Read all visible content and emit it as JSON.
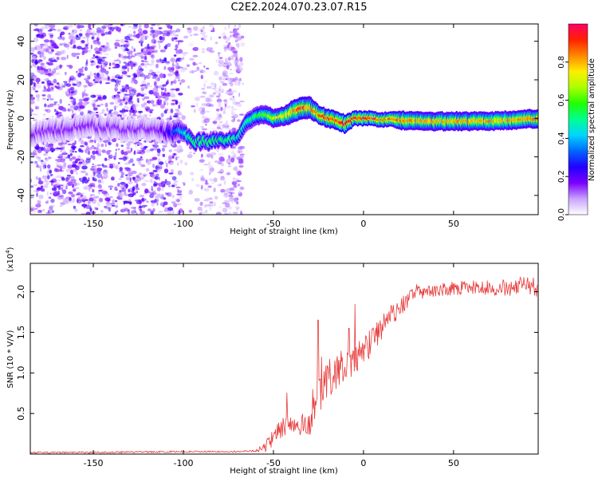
{
  "page_title": "C2E2.2024.070.23.07.R15",
  "colors": {
    "snr_line": "#e83a3a",
    "axis": "#000000",
    "colormap": [
      "#ffffff",
      "#c8a2ff",
      "#7b00ff",
      "#2200ff",
      "#0066ff",
      "#00d5ff",
      "#00ff90",
      "#22ff00",
      "#aaff00",
      "#ffee00",
      "#ff8800",
      "#ff2200",
      "#ff0066"
    ]
  },
  "chart_data": [
    {
      "type": "heatmap",
      "name": "spectrogram",
      "title": "",
      "xlabel": "Height of straight line (km)",
      "ylabel": "Frequency (Hz)",
      "xlim": [
        -185,
        97
      ],
      "ylim": [
        -50,
        49
      ],
      "xticks": [
        -150,
        -100,
        -50,
        0,
        50
      ],
      "yticks": [
        -40,
        -20,
        0,
        20,
        40
      ],
      "grid": false,
      "colorbar": {
        "label": "Normalized spectral amplitude",
        "range": [
          0,
          1
        ],
        "ticks": [
          0.0,
          0.2,
          0.4,
          0.6,
          0.8
        ]
      },
      "ridge": {
        "description_points_x": [
          -185,
          -170,
          -150,
          -130,
          -115,
          -105,
          -100,
          -95,
          -85,
          -75,
          -70,
          -65,
          -60,
          -55,
          -50,
          -45,
          -40,
          -35,
          -30,
          -25,
          -20,
          -15,
          -10,
          -5,
          0,
          5,
          10,
          15,
          20,
          30,
          40,
          50,
          60,
          70,
          80,
          97
        ],
        "description_points_y": [
          -8,
          -6,
          -4,
          -6,
          -5,
          -8,
          -6,
          -12,
          -12,
          -11,
          -10,
          -2,
          1,
          2,
          0,
          1,
          3,
          5,
          6,
          2,
          0,
          -1,
          -3,
          0,
          0,
          0,
          -1,
          0,
          -1,
          -1.5,
          -1.5,
          -1.5,
          -1.5,
          -1.5,
          -1,
          0
        ],
        "width_hz": [
          6,
          6,
          6,
          6,
          6,
          6,
          5,
          4,
          4,
          4,
          4,
          5,
          5,
          5,
          5,
          5,
          6,
          6,
          6,
          5,
          5,
          5,
          5,
          4,
          4,
          4,
          4,
          4,
          5,
          5,
          5,
          5,
          5,
          5,
          5,
          5
        ],
        "peak_amplitude": [
          0.15,
          0.15,
          0.15,
          0.15,
          0.15,
          0.3,
          0.45,
          0.55,
          0.55,
          0.55,
          0.5,
          0.5,
          0.55,
          0.6,
          0.7,
          0.75,
          0.8,
          0.9,
          0.8,
          0.85,
          0.9,
          0.9,
          0.95,
          0.9,
          0.95,
          0.9,
          0.85,
          0.85,
          0.85,
          0.8,
          0.8,
          0.8,
          0.8,
          0.8,
          0.8,
          0.85
        ]
      },
      "noise_region_x": [
        -185,
        -67
      ],
      "noise_level": 0.12
    },
    {
      "type": "line",
      "name": "snr",
      "title": "",
      "xlabel": "Height of straight line (km)",
      "ylabel": "SNR (10 * V/V)",
      "y_multiplier_label": "(x10",
      "y_multiplier_exp": "4",
      "y_multiplier_close": ")",
      "xlim": [
        -185,
        97
      ],
      "ylim": [
        0,
        2.35
      ],
      "xticks": [
        -150,
        -100,
        -50,
        0,
        50
      ],
      "yticks": [
        0.5,
        1.0,
        1.5,
        2.0
      ],
      "ytick_labels": [
        "0.5",
        "1.0",
        "1.5",
        "2.0"
      ],
      "grid": false,
      "trend": {
        "x": [
          -185,
          -150,
          -100,
          -70,
          -60,
          -55,
          -50,
          -45,
          -40,
          -35,
          -30,
          -25,
          -20,
          -15,
          -10,
          -5,
          0,
          5,
          10,
          15,
          20,
          25,
          30,
          40,
          50,
          60,
          70,
          80,
          90,
          97
        ],
        "y": [
          0.02,
          0.02,
          0.03,
          0.03,
          0.04,
          0.08,
          0.2,
          0.35,
          0.4,
          0.35,
          0.4,
          0.7,
          0.9,
          1.0,
          1.05,
          1.15,
          1.25,
          1.4,
          1.55,
          1.7,
          1.8,
          1.9,
          2.0,
          2.02,
          2.04,
          2.05,
          2.04,
          2.05,
          2.08,
          2.05
        ]
      },
      "noise_amplitude": {
        "x": [
          -185,
          -60,
          -50,
          -30,
          -20,
          0,
          20,
          40,
          97
        ],
        "y": [
          0.01,
          0.01,
          0.12,
          0.18,
          0.25,
          0.2,
          0.12,
          0.08,
          0.12
        ]
      }
    }
  ]
}
